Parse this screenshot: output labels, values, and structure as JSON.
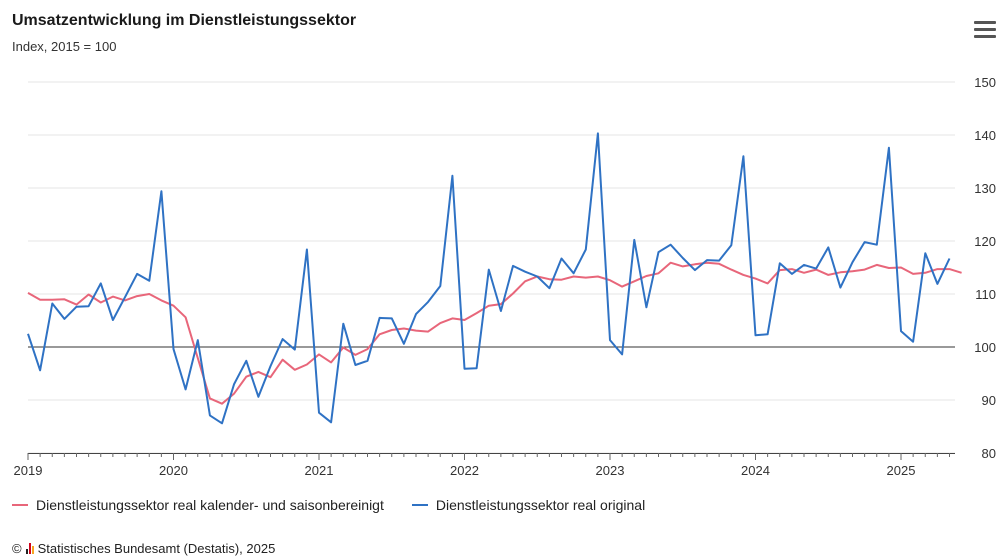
{
  "header": {
    "title": "Umsatzentwicklung im Dienstleistungssektor",
    "subtitle": "Index, 2015 = 100",
    "menu_icon": "hamburger-menu-icon"
  },
  "credits": {
    "copyright": "©",
    "text": "Statistisches Bundesamt (Destatis), 2025"
  },
  "colors": {
    "series_adjusted": "#e8667a",
    "series_original": "#2f72c4",
    "baseline": "#333333",
    "grid": "#e6e6e6"
  },
  "chart_data": {
    "type": "line",
    "title": "Umsatzentwicklung im Dienstleistungssektor",
    "subtitle": "Index, 2015 = 100",
    "x_start": "2019-01",
    "x_ticks": [
      "2019",
      "2020",
      "2021",
      "2022",
      "2023",
      "2024",
      "2025"
    ],
    "y_ticks": [
      80,
      90,
      100,
      110,
      120,
      130,
      140,
      150
    ],
    "ylim": [
      80,
      150
    ],
    "reference_line": 100,
    "y_axis_position": "right",
    "grid": true,
    "legend_position": "bottom-left",
    "series": [
      {
        "name": "Dienstleistungssektor real kalender- und saisonbereinigt",
        "color": "#e8667a",
        "values": [
          110.2,
          108.9,
          108.9,
          109.0,
          108.0,
          109.9,
          108.4,
          109.5,
          108.8,
          109.6,
          110.0,
          108.8,
          107.8,
          105.6,
          97.9,
          90.3,
          89.3,
          91.2,
          94.4,
          95.3,
          94.3,
          97.6,
          95.7,
          96.7,
          98.6,
          97.1,
          99.9,
          98.5,
          99.6,
          102.4,
          103.2,
          103.5,
          103.1,
          102.9,
          104.5,
          105.4,
          105.1,
          106.4,
          107.8,
          108.1,
          110.1,
          112.4,
          113.3,
          112.8,
          112.7,
          113.3,
          113.1,
          113.3,
          112.6,
          111.4,
          112.4,
          113.4,
          113.9,
          115.9,
          115.2,
          115.6,
          115.9,
          115.7,
          114.6,
          113.6,
          112.9,
          112.0,
          114.5,
          114.7,
          114.0,
          114.6,
          113.6,
          114.1,
          114.3,
          114.6,
          115.5,
          114.9,
          115.0,
          113.8,
          114.0,
          114.7,
          114.7,
          114.0
        ]
      },
      {
        "name": "Dienstleistungssektor real original",
        "color": "#2f72c4",
        "values": [
          102.5,
          95.6,
          108.2,
          105.3,
          107.6,
          107.7,
          112.0,
          105.1,
          109.4,
          113.8,
          112.5,
          129.4,
          99.6,
          92.0,
          101.3,
          87.1,
          85.6,
          93.0,
          97.4,
          90.6,
          96.4,
          101.5,
          99.5,
          118.4,
          87.6,
          85.8,
          104.4,
          96.6,
          97.4,
          105.5,
          105.4,
          100.6,
          106.2,
          108.5,
          111.5,
          132.3,
          95.9,
          96.0,
          114.6,
          106.8,
          115.3,
          114.2,
          113.3,
          111.1,
          116.7,
          113.9,
          118.4,
          140.3,
          101.3,
          98.6,
          120.2,
          107.5,
          117.9,
          119.3,
          116.8,
          114.5,
          116.4,
          116.3,
          119.2,
          136.0,
          102.2,
          102.4,
          115.8,
          113.8,
          115.5,
          114.8,
          118.8,
          111.2,
          116.0,
          119.8,
          119.3,
          137.6,
          103.0,
          101.0,
          117.7,
          111.9,
          116.7
        ]
      }
    ]
  }
}
